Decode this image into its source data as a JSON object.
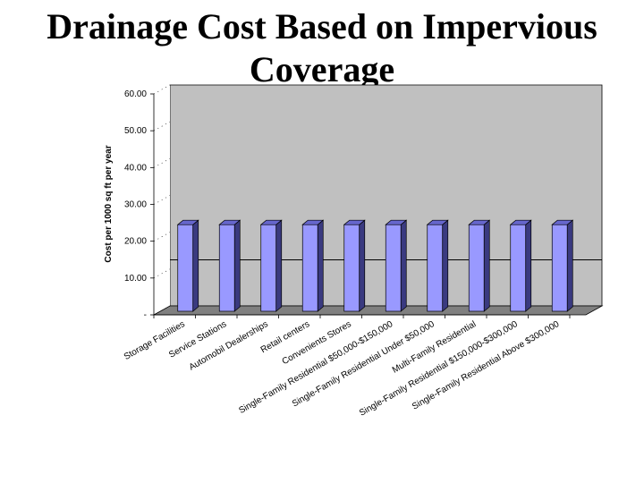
{
  "slide": {
    "title": "Drainage Cost Based on Impervious Coverage"
  },
  "chart_data": {
    "type": "bar",
    "title": "",
    "xlabel": "",
    "ylabel": "Cost per 1000 sq ft per year",
    "ylim": [
      0,
      60
    ],
    "yticks": [
      0,
      10,
      20,
      30,
      40,
      50,
      60
    ],
    "ytick_labels": [
      "-",
      "10.00",
      "20.00",
      "30.00",
      "40.00",
      "50.00",
      "60.00"
    ],
    "grid": false,
    "legend": "none",
    "reference_line": 12.5,
    "categories": [
      "Storage Facilities",
      "Service Stations",
      "Automobil Dealerships",
      "Retail centers",
      "Convenients Stores",
      "Single-Family Residential $50,000-$150,000",
      "Single-Family Residential Under $50,000",
      "Multi-Family Residential",
      "Single-Family Residential $150,000-$300,000",
      "Single-Family Residential Above $300,000"
    ],
    "values": [
      24,
      24,
      24,
      24,
      24,
      24,
      24,
      24,
      24,
      24
    ],
    "colors": {
      "bar_front": "#9999ff",
      "bar_side": "#3a3a80",
      "bar_top": "#6666cc",
      "back_wall": "#c0c0c0",
      "floor": "#808080",
      "axis": "#000000"
    }
  }
}
